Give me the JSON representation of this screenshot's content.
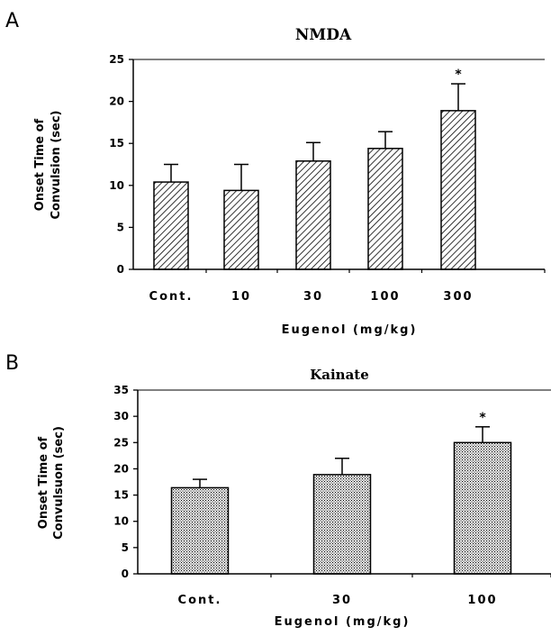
{
  "chart_data": [
    {
      "type": "bar",
      "panel_label": "A",
      "title": "NMDA",
      "ylabel_lines": [
        "Onset Time of",
        "Convulsion (sec)"
      ],
      "xlabel": "Eugenol (mg/kg)",
      "categories": [
        "Cont.",
        "10",
        "30",
        "100",
        "300"
      ],
      "values": [
        10.4,
        9.4,
        12.9,
        14.4,
        18.9
      ],
      "errors": [
        2.1,
        3.1,
        2.2,
        2.0,
        3.2
      ],
      "significance": [
        "",
        "",
        "",
        "",
        "*"
      ],
      "ylim": [
        0,
        25
      ],
      "yticks": [
        0,
        5,
        10,
        15,
        20,
        25
      ],
      "ytick_labels": [
        "0",
        "5",
        "10",
        "15",
        "20",
        "25"
      ],
      "fill_pattern": "diagonal-hatch",
      "grid": false
    },
    {
      "type": "bar",
      "panel_label": "B",
      "title": "Kainate",
      "ylabel_lines": [
        "Onset Time of",
        "Convulsuon (sec)"
      ],
      "xlabel": "Eugenol (mg/kg)",
      "categories": [
        "Cont.",
        "30",
        "100"
      ],
      "values": [
        16.4,
        18.9,
        25.0
      ],
      "errors": [
        1.6,
        3.1,
        3.0
      ],
      "significance": [
        "",
        "",
        "*"
      ],
      "ylim": [
        0,
        35
      ],
      "yticks": [
        0,
        5,
        10,
        15,
        20,
        25,
        30,
        35
      ],
      "ytick_labels": [
        "0",
        "5",
        "10",
        "15",
        "20",
        "25",
        "30",
        "35"
      ],
      "fill_pattern": "dots",
      "grid": false
    }
  ]
}
